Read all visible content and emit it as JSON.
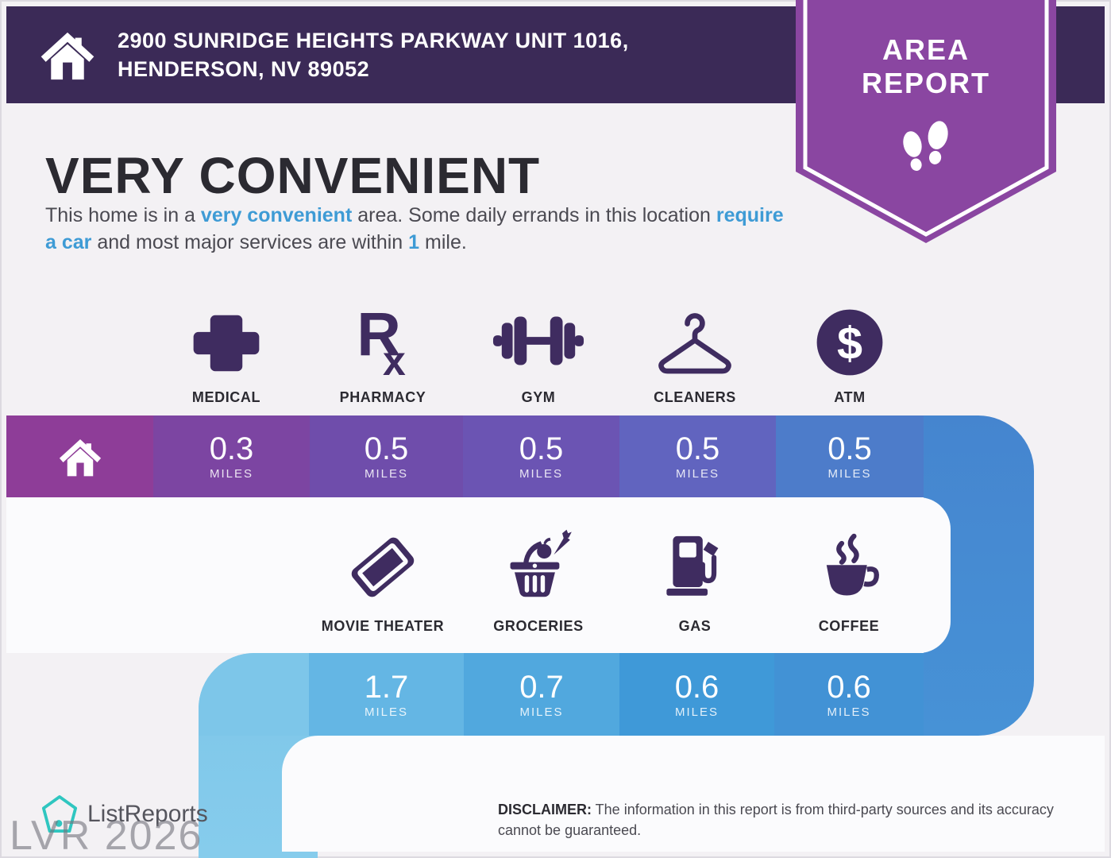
{
  "header": {
    "icon": "home-icon",
    "address_line1": "2900 SUNRIDGE HEIGHTS PARKWAY UNIT 1016,",
    "address_line2": "HENDERSON, NV 89052"
  },
  "badge": {
    "icon": "footprints-icon",
    "line1": "AREA",
    "line2": "REPORT"
  },
  "headline": {
    "title": "VERY CONVENIENT",
    "accent_color": "#3e9bd5",
    "description_parts": [
      {
        "text": "This home is in a "
      },
      {
        "text": "very convenient",
        "accent": true
      },
      {
        "text": " area. Some daily errands in this location "
      },
      {
        "text": "require a car",
        "accent": true
      },
      {
        "text": " and most major services are within "
      },
      {
        "text": "1",
        "accent": true
      },
      {
        "text": " mile."
      }
    ]
  },
  "row1": {
    "origin_icon": "home-icon",
    "items": [
      {
        "label": "MEDICAL",
        "icon": "medical-cross-icon",
        "distance": "0.3",
        "unit": "MILES"
      },
      {
        "label": "PHARMACY",
        "icon": "pharmacy-rx-icon",
        "distance": "0.5",
        "unit": "MILES"
      },
      {
        "label": "GYM",
        "icon": "gym-dumbbell-icon",
        "distance": "0.5",
        "unit": "MILES"
      },
      {
        "label": "CLEANERS",
        "icon": "cleaners-hanger-icon",
        "distance": "0.5",
        "unit": "MILES"
      },
      {
        "label": "ATM",
        "icon": "atm-dollar-icon",
        "distance": "0.5",
        "unit": "MILES"
      }
    ]
  },
  "row2": {
    "items": [
      {
        "label": "MOVIE THEATER",
        "icon": "movie-ticket-icon",
        "distance": "1.7",
        "unit": "MILES"
      },
      {
        "label": "GROCERIES",
        "icon": "groceries-basket-icon",
        "distance": "0.7",
        "unit": "MILES"
      },
      {
        "label": "GAS",
        "icon": "gas-pump-icon",
        "distance": "0.6",
        "unit": "MILES"
      },
      {
        "label": "COFFEE",
        "icon": "coffee-cup-icon",
        "distance": "0.6",
        "unit": "MILES"
      }
    ]
  },
  "footer": {
    "logo_icon": "listreports-pentagon-icon",
    "logo_text": "ListReports",
    "watermark": "LVR 2026",
    "disclaimer_label": "DISCLAIMER:",
    "disclaimer_text": " The information in this report is from third-party sources and its accuracy cannot be guaranteed."
  },
  "colors": {
    "header_bg": "#3b2a57",
    "badge_purple": "#8a46a1",
    "accent_blue": "#3e9bd5",
    "icon_indigo": "#3f2c60",
    "title_text": "#2b2a31",
    "body_text": "#4b4a52",
    "bar1_segments": [
      "#8e3d98",
      "#7c45a2",
      "#6f4dab",
      "#6b54b3",
      "#6164bf",
      "#4d7cca"
    ],
    "right_connector_top": "#4585cf",
    "right_connector_bottom": "#4792d6",
    "bar2_segments": [
      "#7dc6e9",
      "#64b6e4",
      "#51a8de",
      "#3f99d8",
      "#4292d5"
    ],
    "left_connector_top": "#7dc6e9",
    "left_connector_bottom": "#86ccec",
    "logo_teal": "#2fc6c0"
  }
}
